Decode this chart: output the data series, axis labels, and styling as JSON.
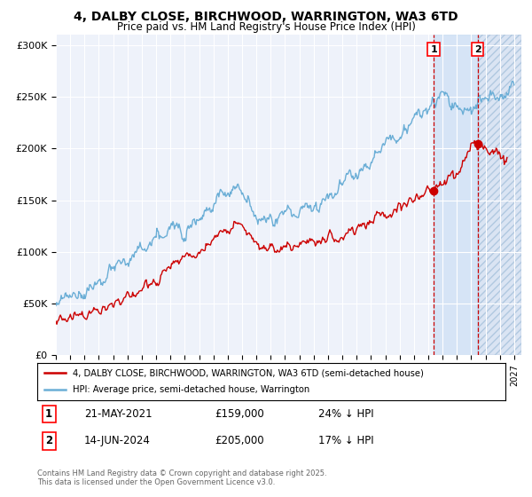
{
  "title": "4, DALBY CLOSE, BIRCHWOOD, WARRINGTON, WA3 6TD",
  "subtitle": "Price paid vs. HM Land Registry's House Price Index (HPI)",
  "ylabel_ticks": [
    "£0",
    "£50K",
    "£100K",
    "£150K",
    "£200K",
    "£250K",
    "£300K"
  ],
  "ytick_values": [
    0,
    50000,
    100000,
    150000,
    200000,
    250000,
    300000
  ],
  "ylim": [
    0,
    310000
  ],
  "xlim_start": 1995.0,
  "xlim_end": 2027.5,
  "hpi_color": "#6baed6",
  "price_color": "#cc0000",
  "marker1_date": 2021.38,
  "marker2_date": 2024.45,
  "marker1_price": 159000,
  "marker2_price": 205000,
  "marker1_label": "21-MAY-2021",
  "marker1_pct": "24% ↓ HPI",
  "marker2_label": "14-JUN-2024",
  "marker2_pct": "17% ↓ HPI",
  "legend1_text": "4, DALBY CLOSE, BIRCHWOOD, WARRINGTON, WA3 6TD (semi-detached house)",
  "legend2_text": "HPI: Average price, semi-detached house, Warrington",
  "footer1": "Contains HM Land Registry data © Crown copyright and database right 2025.",
  "footer2": "This data is licensed under the Open Government Licence v3.0.",
  "bg_color": "#ffffff",
  "plot_bg_color": "#eef2fa",
  "grid_color": "#ffffff",
  "shading_color": "#ccdff5",
  "hatch_color": "#c8d8ee"
}
